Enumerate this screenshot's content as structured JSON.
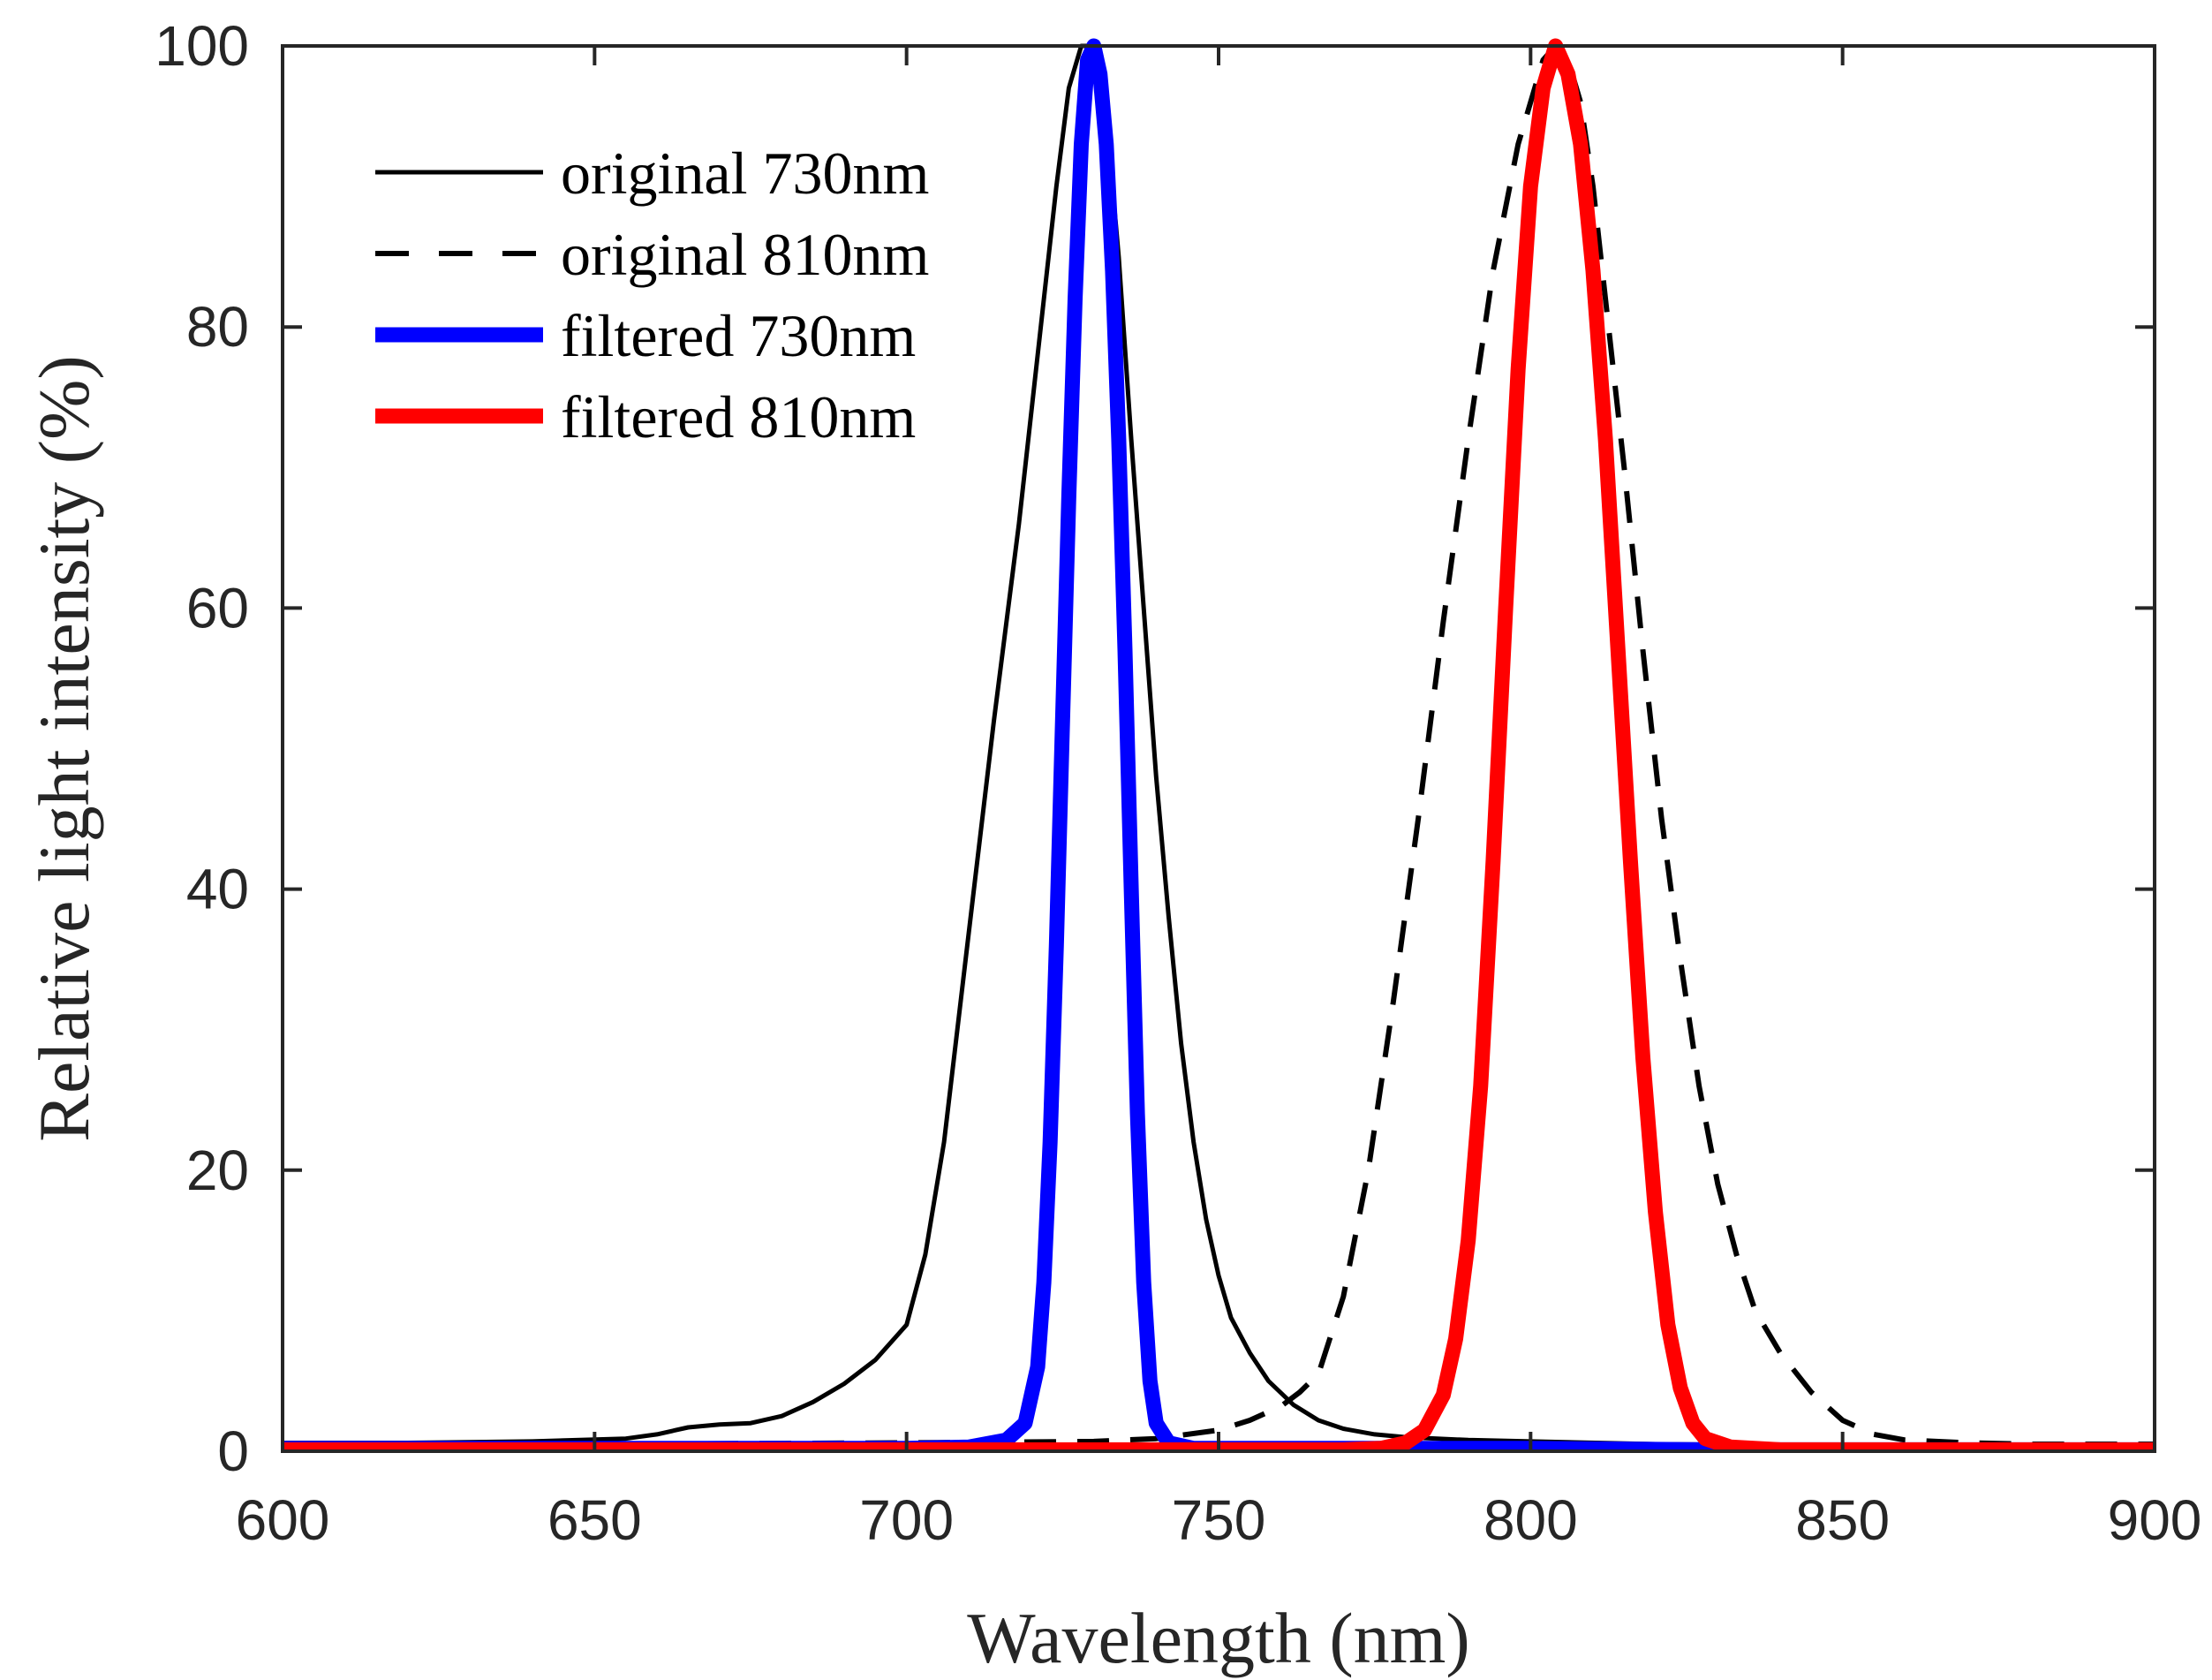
{
  "chart_data": {
    "type": "line",
    "xlabel": "Wavelength (nm)",
    "ylabel": "Relative light intensity (%)",
    "xlim": [
      600,
      900
    ],
    "ylim": [
      0,
      100
    ],
    "x_ticks": [
      600,
      650,
      700,
      750,
      800,
      850,
      900
    ],
    "y_ticks": [
      0,
      20,
      40,
      60,
      80,
      100
    ],
    "grid": false,
    "legend_position": "top-left",
    "series": [
      {
        "name": "original 730nm",
        "color": "#000000",
        "style": "solid",
        "width": "thin",
        "points": [
          [
            600,
            0.6
          ],
          [
            620,
            0.6
          ],
          [
            640,
            0.7
          ],
          [
            655,
            0.9
          ],
          [
            660,
            1.2
          ],
          [
            665,
            1.7
          ],
          [
            670,
            1.9
          ],
          [
            675,
            2.0
          ],
          [
            680,
            2.5
          ],
          [
            685,
            3.5
          ],
          [
            690,
            4.8
          ],
          [
            695,
            6.5
          ],
          [
            700,
            9.0
          ],
          [
            703,
            14
          ],
          [
            706,
            22
          ],
          [
            710,
            37
          ],
          [
            714,
            52
          ],
          [
            718,
            66
          ],
          [
            721,
            78
          ],
          [
            724,
            90
          ],
          [
            726,
            97
          ],
          [
            728,
            100
          ],
          [
            730,
            100
          ],
          [
            732,
            95
          ],
          [
            734,
            85
          ],
          [
            736,
            72
          ],
          [
            738,
            60
          ],
          [
            740,
            48
          ],
          [
            742,
            38
          ],
          [
            744,
            29
          ],
          [
            746,
            22
          ],
          [
            748,
            16.5
          ],
          [
            750,
            12.5
          ],
          [
            752,
            9.5
          ],
          [
            755,
            7
          ],
          [
            758,
            5
          ],
          [
            762,
            3.3
          ],
          [
            766,
            2.2
          ],
          [
            770,
            1.6
          ],
          [
            775,
            1.2
          ],
          [
            780,
            1.0
          ],
          [
            790,
            0.8
          ],
          [
            800,
            0.7
          ],
          [
            820,
            0.5
          ],
          [
            850,
            0.4
          ],
          [
            900,
            0.4
          ]
        ]
      },
      {
        "name": "original 810nm",
        "color": "#000000",
        "style": "dashed",
        "width": "medium",
        "points": [
          [
            600,
            0.5
          ],
          [
            650,
            0.5
          ],
          [
            700,
            0.6
          ],
          [
            730,
            0.7
          ],
          [
            740,
            0.9
          ],
          [
            750,
            1.5
          ],
          [
            755,
            2.2
          ],
          [
            760,
            3.2
          ],
          [
            763,
            4.2
          ],
          [
            766,
            5.5
          ],
          [
            770,
            11
          ],
          [
            774,
            20
          ],
          [
            778,
            32
          ],
          [
            782,
            45
          ],
          [
            786,
            59
          ],
          [
            790,
            72
          ],
          [
            794,
            84
          ],
          [
            798,
            93
          ],
          [
            802,
            99
          ],
          [
            804,
            100
          ],
          [
            806,
            99
          ],
          [
            808,
            96
          ],
          [
            810,
            90
          ],
          [
            812,
            82
          ],
          [
            815,
            70
          ],
          [
            818,
            57
          ],
          [
            821,
            45
          ],
          [
            824,
            35
          ],
          [
            827,
            26
          ],
          [
            830,
            19
          ],
          [
            833,
            14
          ],
          [
            836,
            10
          ],
          [
            840,
            7
          ],
          [
            845,
            4.2
          ],
          [
            850,
            2.2
          ],
          [
            855,
            1.2
          ],
          [
            860,
            0.8
          ],
          [
            870,
            0.6
          ],
          [
            880,
            0.5
          ],
          [
            900,
            0.5
          ]
        ]
      },
      {
        "name": "filtered 730nm",
        "color": "#0000ff",
        "style": "solid",
        "width": "thick",
        "points": [
          [
            600,
            0.2
          ],
          [
            700,
            0.2
          ],
          [
            710,
            0.3
          ],
          [
            716,
            0.8
          ],
          [
            719,
            2
          ],
          [
            721,
            6
          ],
          [
            722,
            12
          ],
          [
            723,
            22
          ],
          [
            724,
            36
          ],
          [
            725,
            52
          ],
          [
            726,
            68
          ],
          [
            727,
            82
          ],
          [
            728,
            93
          ],
          [
            729,
            99
          ],
          [
            730,
            100
          ],
          [
            731,
            98
          ],
          [
            732,
            93
          ],
          [
            733,
            84
          ],
          [
            734,
            72
          ],
          [
            735,
            57
          ],
          [
            736,
            40
          ],
          [
            737,
            24
          ],
          [
            738,
            12
          ],
          [
            739,
            5
          ],
          [
            740,
            2
          ],
          [
            742,
            0.6
          ],
          [
            746,
            0.2
          ],
          [
            800,
            0.2
          ],
          [
            830,
            0.1
          ],
          [
            900,
            0.1
          ]
        ]
      },
      {
        "name": "filtered 810nm",
        "color": "#ff0000",
        "style": "solid",
        "width": "thick",
        "points": [
          [
            600,
            0.1
          ],
          [
            770,
            0.1
          ],
          [
            776,
            0.2
          ],
          [
            780,
            0.6
          ],
          [
            783,
            1.5
          ],
          [
            786,
            4
          ],
          [
            788,
            8
          ],
          [
            790,
            15
          ],
          [
            792,
            26
          ],
          [
            794,
            42
          ],
          [
            796,
            60
          ],
          [
            798,
            77
          ],
          [
            800,
            90
          ],
          [
            802,
            97
          ],
          [
            804,
            100
          ],
          [
            806,
            98
          ],
          [
            808,
            93
          ],
          [
            810,
            84
          ],
          [
            812,
            72
          ],
          [
            814,
            57
          ],
          [
            816,
            42
          ],
          [
            818,
            28
          ],
          [
            820,
            17
          ],
          [
            822,
            9
          ],
          [
            824,
            4.5
          ],
          [
            826,
            2
          ],
          [
            828,
            0.9
          ],
          [
            832,
            0.3
          ],
          [
            840,
            0.1
          ],
          [
            900,
            0.1
          ]
        ]
      }
    ]
  }
}
